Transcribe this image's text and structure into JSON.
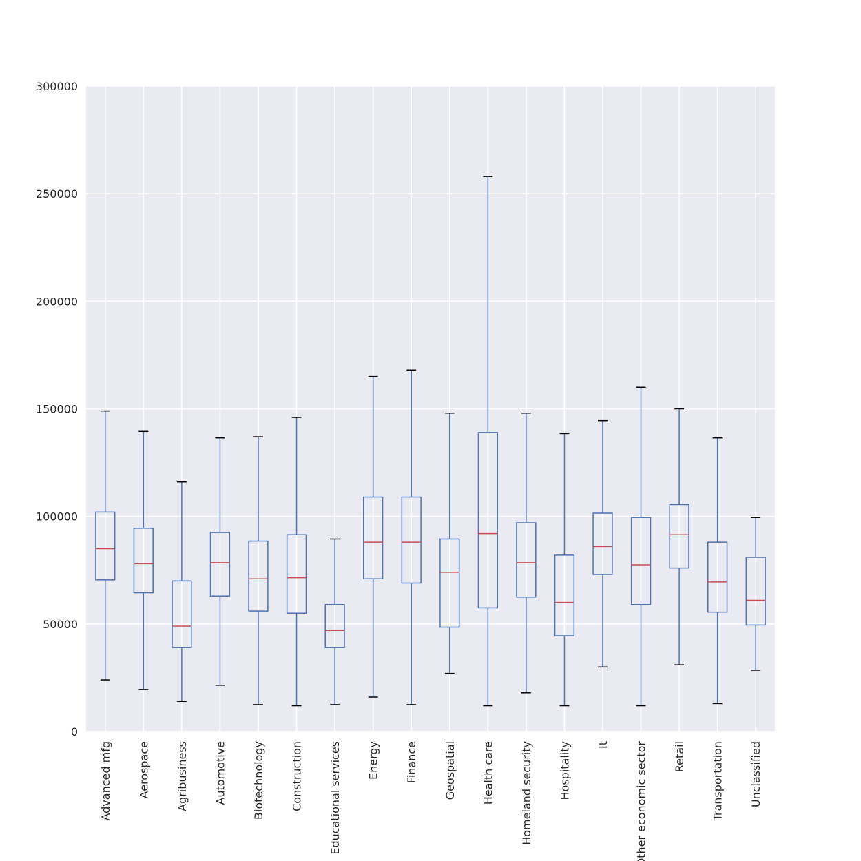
{
  "chart_data": {
    "type": "box",
    "title": "",
    "xlabel": "",
    "ylabel": "",
    "ylim": [
      0,
      300000
    ],
    "yticks": [
      0,
      50000,
      100000,
      150000,
      200000,
      250000,
      300000
    ],
    "ytick_labels": [
      "0",
      "50000",
      "100000",
      "150000",
      "200000",
      "250000",
      "300000"
    ],
    "grid": true,
    "legend": "none",
    "colors": {
      "plot_background": "#EAEAF2",
      "grid": "#FFFFFF",
      "box": "#4C72B0",
      "median": "#C44E52",
      "cap": "#000000",
      "text": "#262626"
    },
    "categories": [
      "Advanced mfg",
      "Aerospace",
      "Agribusiness",
      "Automotive",
      "Biotechnology",
      "Construction",
      "Educational services",
      "Energy",
      "Finance",
      "Geospatial",
      "Health care",
      "Homeland security",
      "Hospitality",
      "It",
      "Other economic sector",
      "Retail",
      "Transportation",
      "Unclassified"
    ],
    "boxes": [
      {
        "whislo": 24000,
        "q1": 70500,
        "med": 85000,
        "q3": 102000,
        "whishi": 149000
      },
      {
        "whislo": 19500,
        "q1": 64500,
        "med": 78000,
        "q3": 94500,
        "whishi": 139500
      },
      {
        "whislo": 14000,
        "q1": 39000,
        "med": 49000,
        "q3": 70000,
        "whishi": 116000
      },
      {
        "whislo": 21500,
        "q1": 63000,
        "med": 78500,
        "q3": 92500,
        "whishi": 136500
      },
      {
        "whislo": 12500,
        "q1": 56000,
        "med": 71000,
        "q3": 88500,
        "whishi": 137000
      },
      {
        "whislo": 12000,
        "q1": 55000,
        "med": 71500,
        "q3": 91500,
        "whishi": 146000
      },
      {
        "whislo": 12500,
        "q1": 39000,
        "med": 47000,
        "q3": 59000,
        "whishi": 89500
      },
      {
        "whislo": 16000,
        "q1": 71000,
        "med": 88000,
        "q3": 109000,
        "whishi": 165000
      },
      {
        "whislo": 12500,
        "q1": 69000,
        "med": 88000,
        "q3": 109000,
        "whishi": 168000
      },
      {
        "whislo": 27000,
        "q1": 48500,
        "med": 74000,
        "q3": 89500,
        "whishi": 148000
      },
      {
        "whislo": 12000,
        "q1": 57500,
        "med": 92000,
        "q3": 139000,
        "whishi": 258000
      },
      {
        "whislo": 18000,
        "q1": 62500,
        "med": 78500,
        "q3": 97000,
        "whishi": 148000
      },
      {
        "whislo": 12000,
        "q1": 44500,
        "med": 60000,
        "q3": 82000,
        "whishi": 138500
      },
      {
        "whislo": 30000,
        "q1": 73000,
        "med": 86000,
        "q3": 101500,
        "whishi": 144500
      },
      {
        "whislo": 12000,
        "q1": 59000,
        "med": 77500,
        "q3": 99500,
        "whishi": 160000
      },
      {
        "whislo": 31000,
        "q1": 76000,
        "med": 91500,
        "q3": 105500,
        "whishi": 150000
      },
      {
        "whislo": 13000,
        "q1": 55500,
        "med": 69500,
        "q3": 88000,
        "whishi": 136500
      },
      {
        "whislo": 28500,
        "q1": 49500,
        "med": 61000,
        "q3": 81000,
        "whishi": 99500
      }
    ]
  }
}
